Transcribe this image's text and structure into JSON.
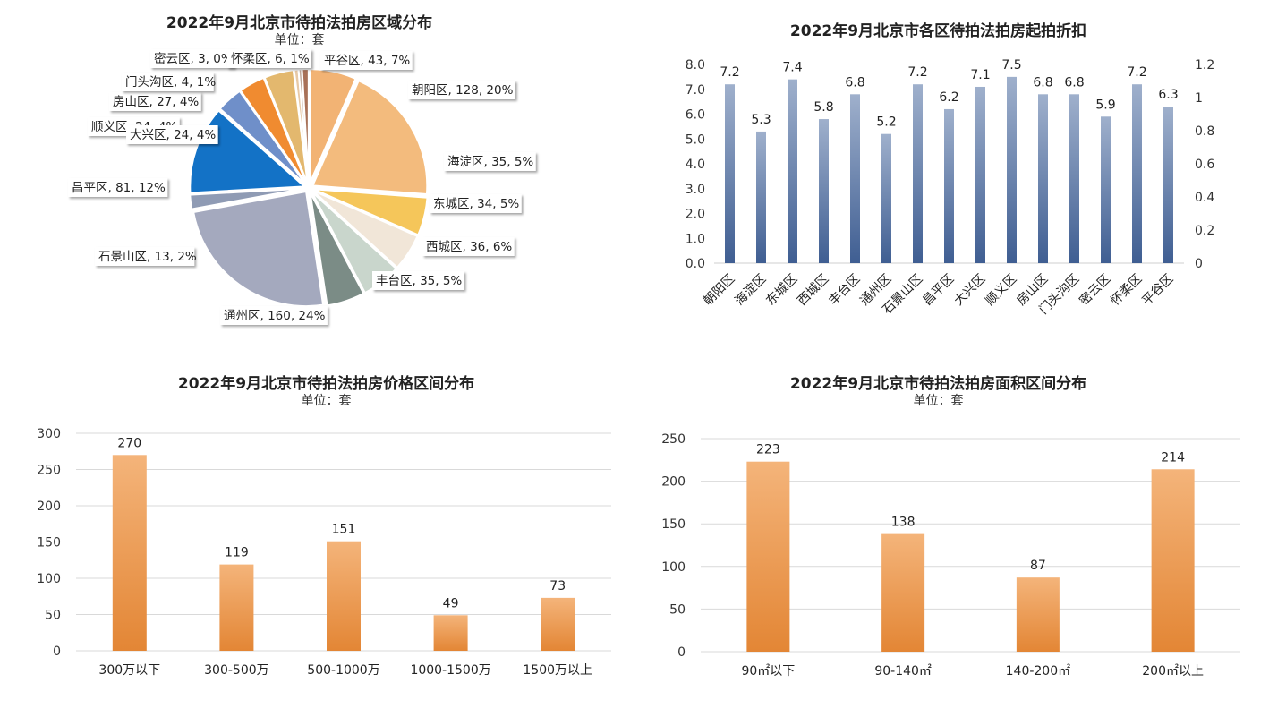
{
  "charts": {
    "district_dist": {
      "title": "2022年9月北京市待拍法拍房区域分布",
      "subtitle": "单位：套"
    },
    "discount": {
      "title": "2022年9月北京市各区待拍法拍房起拍折扣"
    },
    "price_dist": {
      "title": "2022年9月北京市待拍法拍房价格区间分布",
      "subtitle": "单位：套"
    },
    "area_dist": {
      "title": "2022年9月北京市待拍法拍房面积区间分布",
      "subtitle": "单位：套"
    }
  },
  "chart_data": [
    {
      "id": "district_dist",
      "type": "pie",
      "title": "2022年9月北京市待拍法拍房区域分布",
      "subtitle": "单位：套",
      "slices": [
        {
          "label": "平谷区, 43, 7%",
          "value": 43,
          "color": "#f2b374"
        },
        {
          "label": "朝阳区, 128, 20%",
          "value": 128,
          "color": "#f3bb7d"
        },
        {
          "label": "海淀区, 35, 5%",
          "value": 35,
          "color": "#f5c65a"
        },
        {
          "label": "东城区, 34, 5%",
          "value": 34,
          "color": "#f1e6d8"
        },
        {
          "label": "西城区, 36, 6%",
          "value": 36,
          "color": "#c9d6cc"
        },
        {
          "label": "丰台区, 35, 5%",
          "value": 35,
          "color": "#7b8c86"
        },
        {
          "label": "通州区, 160, 24%",
          "value": 160,
          "color": "#a4a9be"
        },
        {
          "label": "石景山区, 13, 2%",
          "value": 13,
          "color": "#8f9bb4"
        },
        {
          "label": "昌平区, 81, 12%",
          "value": 81,
          "color": "#1372c6"
        },
        {
          "label": "顺义区, 24, 4%",
          "value": 24,
          "color": "#6f8fc9"
        },
        {
          "label": "大兴区, 24, 4%",
          "value": 24,
          "color": "#f08b30"
        },
        {
          "label": "房山区, 27, 4%",
          "value": 27,
          "color": "#e3b86e"
        },
        {
          "label": "门头沟区, 4, 1%",
          "value": 4,
          "color": "#e7c9a6"
        },
        {
          "label": "密云区, 3, 0%",
          "value": 3,
          "color": "#bfa89a"
        },
        {
          "label": "怀柔区, 6, 1%",
          "value": 6,
          "color": "#a87158"
        }
      ]
    },
    {
      "id": "discount",
      "type": "bar",
      "title": "2022年9月北京市各区待拍法拍房起拍折扣",
      "categories": [
        "朝阳区",
        "海淀区",
        "东城区",
        "西城区",
        "丰台区",
        "通州区",
        "石景山区",
        "昌平区",
        "大兴区",
        "顺义区",
        "房山区",
        "门头沟区",
        "密云区",
        "怀柔区",
        "平谷区"
      ],
      "values": [
        7.2,
        5.3,
        7.4,
        5.8,
        6.8,
        5.2,
        7.2,
        6.2,
        7.1,
        7.5,
        6.8,
        6.8,
        5.9,
        7.2,
        6.3
      ],
      "ylim": [
        0,
        8
      ],
      "yticks": [
        "0.0",
        "1.0",
        "2.0",
        "3.0",
        "4.0",
        "5.0",
        "6.0",
        "7.0",
        "8.0"
      ],
      "y2ticks": [
        "0",
        "0.2",
        "0.4",
        "0.6",
        "0.8",
        "1",
        "1.2"
      ],
      "grid": false
    },
    {
      "id": "price_dist",
      "type": "bar",
      "title": "2022年9月北京市待拍法拍房价格区间分布",
      "subtitle": "单位：套",
      "categories": [
        "300万以下",
        "300-500万",
        "500-1000万",
        "1000-1500万",
        "1500万以上"
      ],
      "values": [
        270,
        119,
        151,
        49,
        73
      ],
      "ylim": [
        0,
        300
      ],
      "yticks": [
        "0",
        "50",
        "100",
        "150",
        "200",
        "250",
        "300"
      ],
      "grid": true
    },
    {
      "id": "area_dist",
      "type": "bar",
      "title": "2022年9月北京市待拍法拍房面积区间分布",
      "subtitle": "单位：套",
      "categories": [
        "90㎡以下",
        "90-140㎡",
        "140-200㎡",
        "200㎡以上"
      ],
      "values": [
        223,
        138,
        87,
        214
      ],
      "ylim": [
        0,
        250
      ],
      "yticks": [
        "0",
        "50",
        "100",
        "150",
        "200",
        "250"
      ],
      "grid": true
    }
  ]
}
